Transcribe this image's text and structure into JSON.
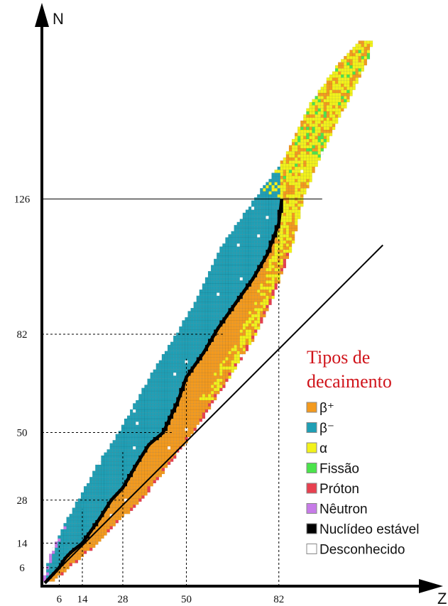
{
  "chart_data": {
    "type": "heatmap",
    "title": "",
    "xlabel": "Z",
    "ylabel": "N",
    "xlim": [
      0,
      118
    ],
    "ylim": [
      0,
      177
    ],
    "x_ticks": [
      "6",
      "14",
      "28",
      "50",
      "82"
    ],
    "x_tick_values": [
      6,
      14,
      28,
      50,
      82
    ],
    "y_ticks": [
      "126",
      "82",
      "50",
      "28",
      "14",
      "6"
    ],
    "y_tick_values": [
      126,
      82,
      50,
      28,
      14,
      6
    ],
    "legend": {
      "title_line1": "Tipos de",
      "title_line2": "decaimento",
      "items": [
        {
          "key": "beta_plus",
          "label": "β⁺",
          "color": "#f39a1e"
        },
        {
          "key": "beta_minus",
          "label": "β⁻",
          "color": "#1f9fb5"
        },
        {
          "key": "alpha",
          "label": "α",
          "color": "#f2f21a"
        },
        {
          "key": "fission",
          "label": "Fissão",
          "color": "#4be34b"
        },
        {
          "key": "proton",
          "label": "Próton",
          "color": "#e8404f"
        },
        {
          "key": "neutron",
          "label": "Nêutron",
          "color": "#c77be8"
        },
        {
          "key": "stable",
          "label": "Nuclídeo estável",
          "color": "#000000"
        },
        {
          "key": "unknown",
          "label": "Desconhecido",
          "color": "#ffffff"
        }
      ]
    },
    "band_rows": [
      {
        "n": 2,
        "z_min": 1,
        "z_max": 4
      },
      {
        "n": 6,
        "z_min": 2,
        "z_max": 9
      },
      {
        "n": 10,
        "z_min": 3,
        "z_max": 14
      },
      {
        "n": 14,
        "z_min": 5,
        "z_max": 19
      },
      {
        "n": 20,
        "z_min": 8,
        "z_max": 25
      },
      {
        "n": 28,
        "z_min": 13,
        "z_max": 34
      },
      {
        "n": 40,
        "z_min": 20,
        "z_max": 44
      },
      {
        "n": 50,
        "z_min": 27,
        "z_max": 52
      },
      {
        "n": 60,
        "z_min": 33,
        "z_max": 59
      },
      {
        "n": 70,
        "z_min": 39,
        "z_max": 66
      },
      {
        "n": 82,
        "z_min": 47,
        "z_max": 74
      },
      {
        "n": 95,
        "z_min": 55,
        "z_max": 80
      },
      {
        "n": 110,
        "z_min": 62,
        "z_max": 86
      },
      {
        "n": 126,
        "z_min": 74,
        "z_max": 90
      },
      {
        "n": 140,
        "z_min": 85,
        "z_max": 96
      },
      {
        "n": 155,
        "z_min": 92,
        "z_max": 104
      },
      {
        "n": 170,
        "z_min": 103,
        "z_max": 112
      },
      {
        "n": 177,
        "z_min": 110,
        "z_max": 114
      }
    ],
    "stability_line": [
      [
        1,
        1
      ],
      [
        3,
        3
      ],
      [
        6,
        6
      ],
      [
        8,
        9
      ],
      [
        10,
        11
      ],
      [
        14,
        14
      ],
      [
        17,
        18
      ],
      [
        20,
        22
      ],
      [
        24,
        28
      ],
      [
        28,
        32
      ],
      [
        33,
        40
      ],
      [
        37,
        46
      ],
      [
        42,
        50
      ],
      [
        47,
        60
      ],
      [
        50,
        68
      ],
      [
        56,
        76
      ],
      [
        61,
        84
      ],
      [
        67,
        92
      ],
      [
        73,
        100
      ],
      [
        78,
        108
      ],
      [
        82,
        118
      ],
      [
        83,
        126
      ]
    ],
    "reference_line": {
      "start": [
        1,
        1
      ],
      "end": [
        118,
        111
      ]
    },
    "magic_lines": {
      "n": [
        {
          "value": 126,
          "style": "solid"
        },
        {
          "value": 82,
          "style": "dashed"
        },
        {
          "value": 50,
          "style": "dashed"
        },
        {
          "value": 28,
          "style": "dashed"
        },
        {
          "value": 14,
          "style": "dashed"
        },
        {
          "value": 6,
          "style": "dashed"
        }
      ],
      "z": [
        {
          "value": 6,
          "style": "dashed"
        },
        {
          "value": 14,
          "style": "dashed"
        },
        {
          "value": 28,
          "style": "dashed"
        },
        {
          "value": 50,
          "style": "dashed"
        },
        {
          "value": 82,
          "style": "dashed"
        }
      ]
    }
  }
}
